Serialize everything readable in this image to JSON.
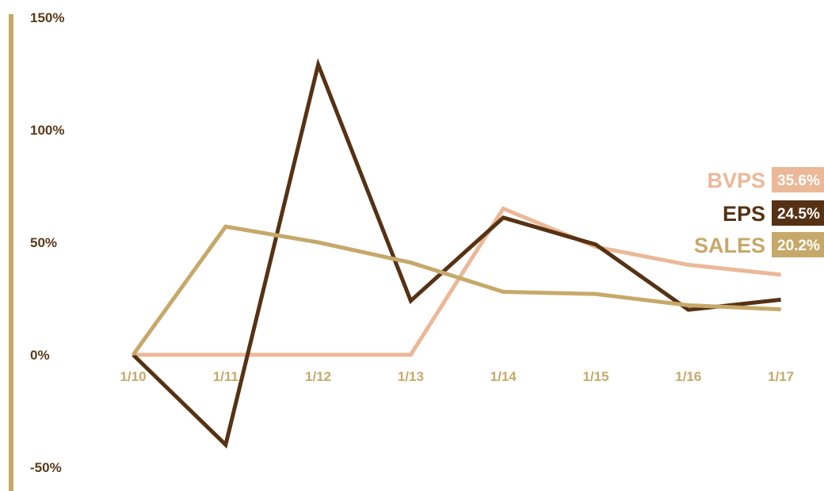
{
  "chart_data": {
    "type": "line",
    "categories": [
      "1/10",
      "1/11",
      "1/12",
      "1/13",
      "1/14",
      "1/15",
      "1/16",
      "1/17"
    ],
    "y_ticks": [
      "150%",
      "100%",
      "50%",
      "0%",
      "-50%"
    ],
    "ylim": [
      -50,
      150
    ],
    "grid": false,
    "legend_position": "right",
    "axis_color": "#c6a96a",
    "series": [
      {
        "name": "BVPS",
        "color": "#ebb898",
        "last_label": "35.6%",
        "values": [
          0,
          0,
          0,
          0,
          65,
          48,
          40,
          35.6
        ]
      },
      {
        "name": "EPS",
        "color": "#563214",
        "last_label": "24.5%",
        "values": [
          0,
          -40,
          129,
          24,
          61,
          49,
          20,
          24.5
        ]
      },
      {
        "name": "SALES",
        "color": "#c6a96a",
        "last_label": "20.2%",
        "values": [
          0,
          57,
          50,
          41,
          28,
          27,
          22,
          20.2
        ]
      }
    ]
  }
}
